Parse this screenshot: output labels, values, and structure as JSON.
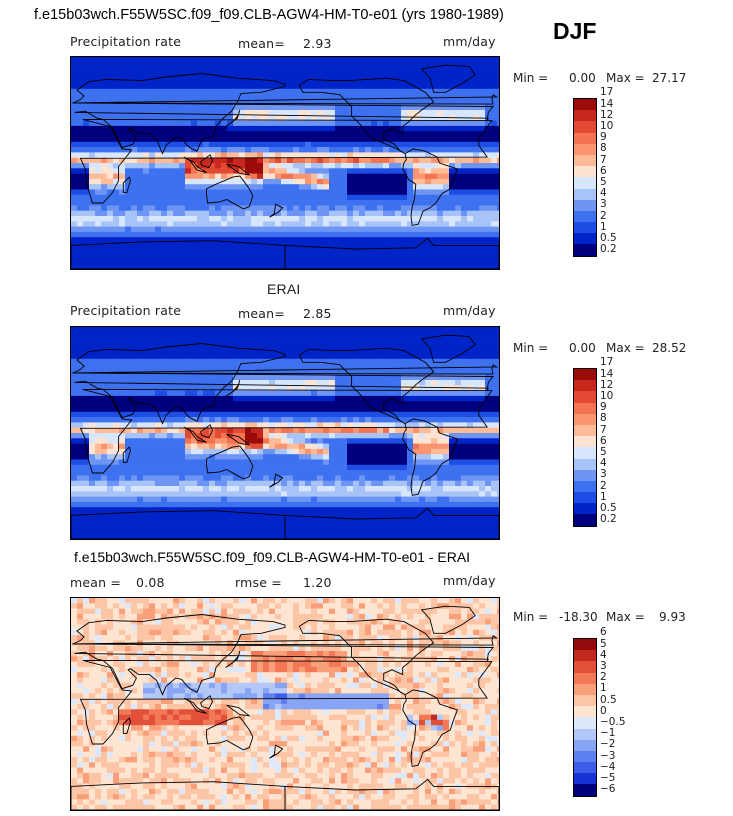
{
  "season_label": "DJF",
  "colors": {
    "precip": [
      "#00007f",
      "#0024c8",
      "#1c4ee6",
      "#3d71f0",
      "#6e95f3",
      "#a8c3f7",
      "#d8e6fb",
      "#fde4d2",
      "#fdbc97",
      "#f99670",
      "#f47452",
      "#e34a33",
      "#c8271d",
      "#9a0b0a"
    ],
    "diff": [
      "#00007f",
      "#1733d6",
      "#3b5de8",
      "#5f80f0",
      "#88a4f4",
      "#b3c8f8",
      "#dde8fb",
      "#fde5d2",
      "#fcc6a6",
      "#f9a07a",
      "#f27856",
      "#e2503a",
      "#c22a1f",
      "#930a0a"
    ]
  },
  "panels": [
    {
      "title": "f.e15b03wch.F55W5SC.f09_f09.CLB-AGW4-HM-T0-e01 (yrs 1980-1989)",
      "field_label": "Precipitation rate",
      "mean_label": "mean=",
      "mean_value": "2.93",
      "units": "mm/day",
      "min_label": "Min =",
      "min_value": "0.00",
      "max_label": "Max =",
      "max_value": "27.17",
      "scale": "precip",
      "map_variant": "model"
    },
    {
      "title": "ERAI",
      "field_label": "Precipitation rate",
      "mean_label": "mean=",
      "mean_value": "2.85",
      "units": "mm/day",
      "min_label": "Min =",
      "min_value": "0.00",
      "max_label": "Max =",
      "max_value": "28.52",
      "scale": "precip",
      "map_variant": "obs"
    },
    {
      "title": "f.e15b03wch.F55W5SC.f09_f09.CLB-AGW4-HM-T0-e01 - ERAI",
      "field_label": "",
      "mean_label": "mean =",
      "mean_value": "0.08",
      "rmse_label": "rmse =",
      "rmse_value": "1.20",
      "units": "mm/day",
      "min_label": "Min =",
      "min_value": "-18.30",
      "max_label": "Max =",
      "max_value": "9.93",
      "scale": "diff",
      "map_variant": "diff"
    }
  ],
  "chart_data": [
    {
      "type": "heatmap",
      "title": "f.e15b03wch.F55W5SC.f09_f09.CLB-AGW4-HM-T0-e01 (yrs 1980-1989)",
      "season": "DJF",
      "variable": "Precipitation rate",
      "units": "mm/day",
      "mean": 2.93,
      "min": 0.0,
      "max": 27.17,
      "levels": [
        0.2,
        0.5,
        1,
        2,
        3,
        4,
        5,
        6,
        7,
        8,
        9,
        10,
        12,
        14,
        17
      ]
    },
    {
      "type": "heatmap",
      "title": "ERAI",
      "season": "DJF",
      "variable": "Precipitation rate",
      "units": "mm/day",
      "mean": 2.85,
      "min": 0.0,
      "max": 28.52,
      "levels": [
        0.2,
        0.5,
        1,
        2,
        3,
        4,
        5,
        6,
        7,
        8,
        9,
        10,
        12,
        14,
        17
      ]
    },
    {
      "type": "heatmap",
      "title": "f.e15b03wch.F55W5SC.f09_f09.CLB-AGW4-HM-T0-e01 - ERAI",
      "season": "DJF",
      "units": "mm/day",
      "mean": 0.08,
      "rmse": 1.2,
      "min": -18.3,
      "max": 9.93,
      "levels": [
        -6,
        -5,
        -4,
        -3,
        -2,
        -1,
        -0.5,
        0,
        0.5,
        1,
        2,
        3,
        4,
        5,
        6
      ]
    }
  ]
}
